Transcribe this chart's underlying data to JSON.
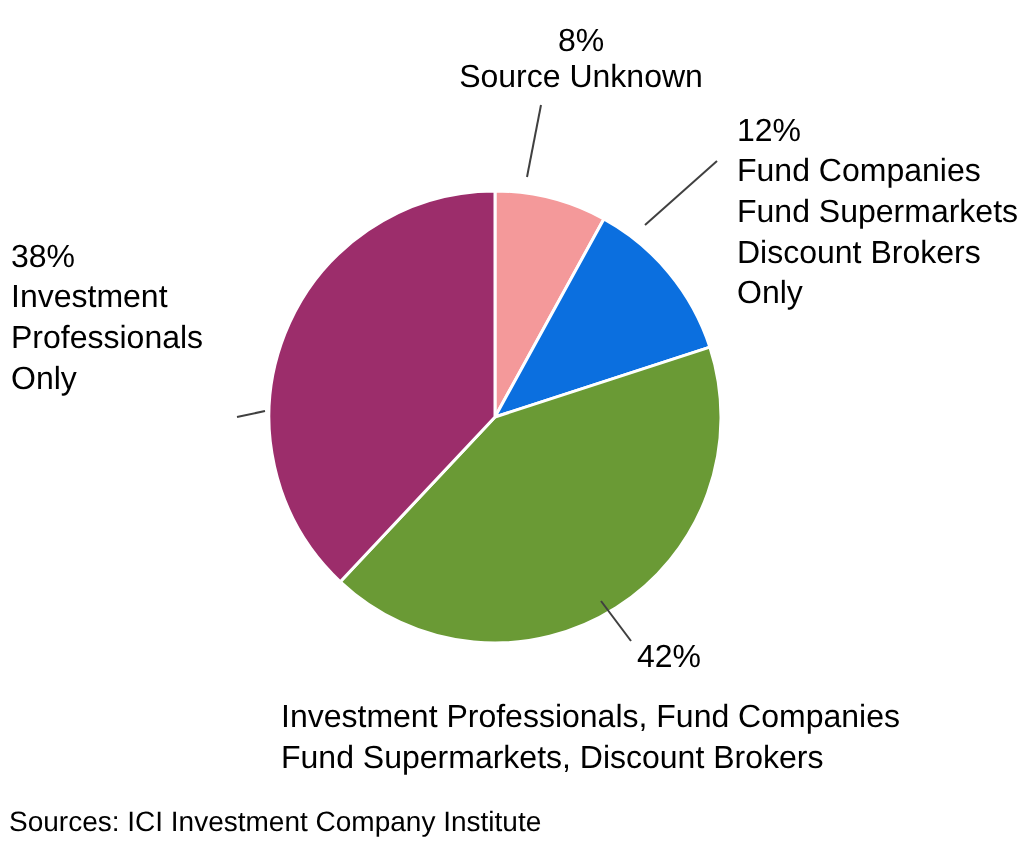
{
  "chart_data": {
    "type": "pie",
    "categories": [
      "Source Unknown",
      "Fund Companies\nFund Supermarkets\nDiscount Brokers\nOnly",
      "Investment Professionals, Fund Companies\nFund Supermarkets, Discount Brokers",
      "Investment\nProfessionals\nOnly"
    ],
    "values": [
      8,
      12,
      42,
      38
    ],
    "colors": [
      "#f4999a",
      "#0b6fdf",
      "#6a9a35",
      "#9c2d6b"
    ],
    "value_labels": [
      "8%",
      "12%",
      "42%",
      "38%"
    ],
    "annotations": [
      "Sources: ICI Investment Company Institute"
    ]
  }
}
